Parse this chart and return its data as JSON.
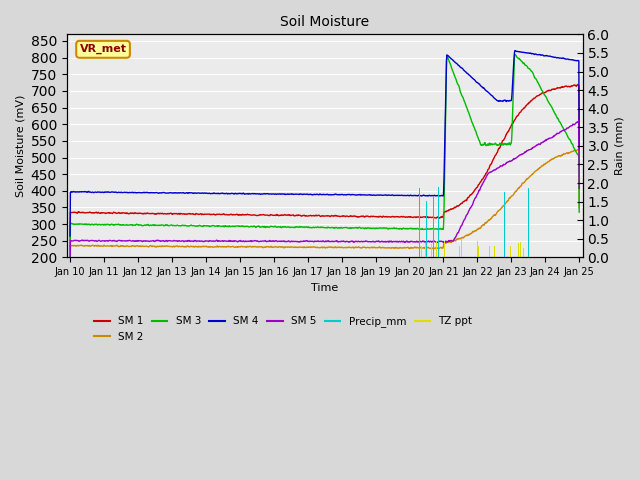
{
  "title": "Soil Moisture",
  "xlabel": "Time",
  "ylabel_left": "Soil Moisture (mV)",
  "ylabel_right": "Rain (mm)",
  "ylim_left": [
    200,
    870
  ],
  "ylim_right": [
    0.0,
    6.0
  ],
  "yticks_left": [
    200,
    250,
    300,
    350,
    400,
    450,
    500,
    550,
    600,
    650,
    700,
    750,
    800,
    850
  ],
  "yticks_right": [
    0.0,
    0.5,
    1.0,
    1.5,
    2.0,
    2.5,
    3.0,
    3.5,
    4.0,
    4.5,
    5.0,
    5.5,
    6.0
  ],
  "xtick_labels": [
    "Jan 10",
    "Jan 11",
    "Jan 12",
    "Jan 13",
    "Jan 14",
    "Jan 15",
    "Jan 16",
    "Jan 17",
    "Jan 18",
    "Jan 19",
    "Jan 20",
    "Jan 21",
    "Jan 22",
    "Jan 23",
    "Jan 24",
    "Jan 25"
  ],
  "station_label": "VR_met",
  "bg_color": "#d8d8d8",
  "plot_bg_color": "#ebebeb",
  "series": {
    "SM1": {
      "color": "#cc0000",
      "label": "SM 1"
    },
    "SM2": {
      "color": "#cc8800",
      "label": "SM 2"
    },
    "SM3": {
      "color": "#00bb00",
      "label": "SM 3"
    },
    "SM4": {
      "color": "#0000cc",
      "label": "SM 4"
    },
    "SM5": {
      "color": "#9900cc",
      "label": "SM 5"
    },
    "Precip_mm": {
      "color": "#00cccc",
      "label": "Precip_mm"
    },
    "TZ_ppt": {
      "color": "#dddd00",
      "label": "TZ ppt"
    }
  }
}
